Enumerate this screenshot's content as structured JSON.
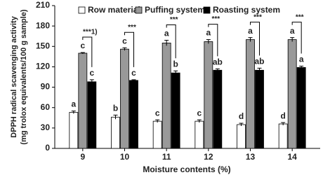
{
  "chart_data": {
    "type": "bar",
    "ylabel": [
      "DPPH radical scavenging activity",
      "(mg trolox equivalents/100 g sample)"
    ],
    "xlabel": "Moisture contents (%)",
    "categories": [
      "9",
      "10",
      "11",
      "12",
      "13",
      "14"
    ],
    "series": [
      {
        "name": "Row material",
        "color": "#ffffff",
        "values": [
          53,
          46,
          40,
          40,
          35,
          36
        ],
        "errors": [
          2,
          3,
          2,
          2,
          2,
          2
        ],
        "letters": [
          "a",
          "b",
          "c",
          "c",
          "d",
          "d"
        ]
      },
      {
        "name": "Puffing system",
        "color": "#999999",
        "values": [
          140,
          146,
          155,
          157,
          160,
          160
        ],
        "errors": [
          1,
          2,
          4,
          3,
          3,
          3
        ],
        "letters": [
          "c",
          "c",
          "a",
          "a",
          "a",
          "a"
        ]
      },
      {
        "name": "Roasting system",
        "color": "#000000",
        "values": [
          98,
          100,
          111,
          115,
          115,
          119
        ],
        "errors": [
          3,
          1,
          3,
          2,
          3,
          2
        ],
        "letters": [
          "c",
          "c",
          "b",
          "ab",
          "ab",
          "a"
        ]
      }
    ],
    "significance": [
      "***1)",
      "***",
      "***",
      "***",
      "***",
      "***"
    ],
    "ylim": [
      0,
      210
    ],
    "yticks": [
      0,
      30,
      60,
      90,
      120,
      150,
      180,
      210
    ]
  }
}
